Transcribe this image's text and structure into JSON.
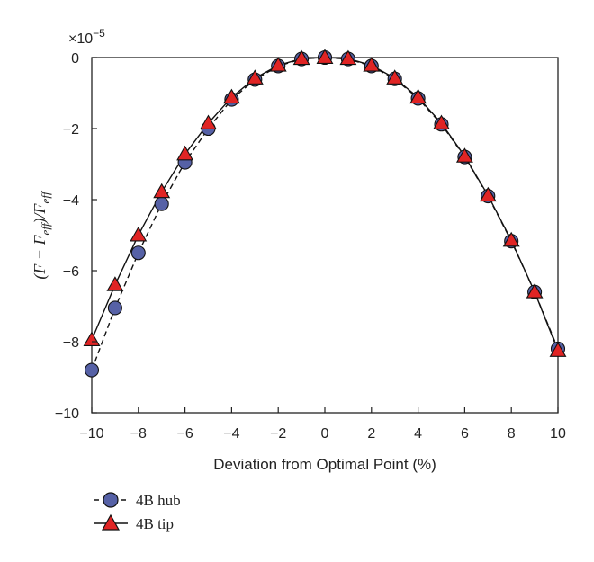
{
  "chart_data": {
    "type": "line",
    "multiplier": "×10",
    "multiplier_exp": "−5",
    "xlabel": "Deviation from Optimal Point (%)",
    "ylabel": {
      "open": "(F − F",
      "sub1": "eff",
      "mid": ")/F",
      "sub2": "eff"
    },
    "xlim": [
      -10,
      10
    ],
    "ylim": [
      -10,
      0
    ],
    "xticks": [
      -10,
      -8,
      -6,
      -4,
      -2,
      0,
      2,
      4,
      6,
      8,
      10
    ],
    "yticks": [
      0,
      -2,
      -4,
      -6,
      -8,
      -10
    ],
    "xtick_labels": [
      "−10",
      "−8",
      "−6",
      "−4",
      "−2",
      "0",
      "2",
      "4",
      "6",
      "8",
      "10"
    ],
    "ytick_labels": [
      "0",
      "−2",
      "−4",
      "−6",
      "−8",
      "−10"
    ],
    "grid": false,
    "legend_position": "below-left",
    "series": [
      {
        "name": "4B hub",
        "marker": "circle",
        "line_style": "dashed",
        "color": "#5661a6",
        "x": [
          -10,
          -9,
          -8,
          -7,
          -6,
          -5,
          -4,
          -3,
          -2,
          -1,
          0,
          1,
          2,
          3,
          4,
          5,
          6,
          7,
          8,
          9,
          10
        ],
        "y": [
          -8.8,
          -7.05,
          -5.5,
          -4.12,
          -2.95,
          -2.0,
          -1.18,
          -0.62,
          -0.24,
          -0.04,
          0.0,
          -0.04,
          -0.24,
          -0.6,
          -1.15,
          -1.88,
          -2.8,
          -3.9,
          -5.17,
          -6.6,
          -8.2
        ]
      },
      {
        "name": "4B tip",
        "marker": "triangle",
        "line_style": "solid",
        "color": "#e02424",
        "x": [
          -10,
          -9,
          -8,
          -7,
          -6,
          -5,
          -4,
          -3,
          -2,
          -1,
          0,
          1,
          2,
          3,
          4,
          5,
          6,
          7,
          8,
          9,
          10
        ],
        "y": [
          -7.95,
          -6.4,
          -5.0,
          -3.78,
          -2.72,
          -1.85,
          -1.12,
          -0.58,
          -0.22,
          -0.03,
          0.0,
          -0.03,
          -0.22,
          -0.58,
          -1.12,
          -1.85,
          -2.78,
          -3.88,
          -5.15,
          -6.6,
          -8.25
        ]
      }
    ]
  }
}
